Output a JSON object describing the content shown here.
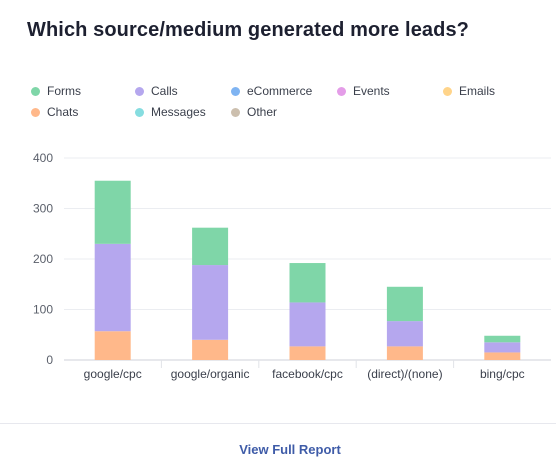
{
  "card": {
    "title": "Which source/medium generated more leads?",
    "footer_link": "View Full Report"
  },
  "legend": [
    {
      "name": "Forms",
      "color": "#7fd6a8"
    },
    {
      "name": "Calls",
      "color": "#b5a7ee"
    },
    {
      "name": "eCommerce",
      "color": "#7fb4f2"
    },
    {
      "name": "Events",
      "color": "#e49de8"
    },
    {
      "name": "Emails",
      "color": "#ffd48a"
    },
    {
      "name": "Chats",
      "color": "#ffb88a"
    },
    {
      "name": "Messages",
      "color": "#86dde0"
    },
    {
      "name": "Other",
      "color": "#ccbfae"
    }
  ],
  "chart_data": {
    "type": "bar",
    "stacked": true,
    "title": "",
    "xlabel": "",
    "ylabel": "",
    "categories": [
      "google/cpc",
      "google/organic",
      "facebook/cpc",
      "(direct)/(none)",
      "bing/cpc"
    ],
    "ylim": [
      0,
      400
    ],
    "yticks": [
      0,
      100,
      200,
      300,
      400
    ],
    "grid": true,
    "legend_position": "top",
    "series": [
      {
        "name": "Chats",
        "color": "#ffb88a",
        "values": [
          57,
          40,
          27,
          27,
          15
        ]
      },
      {
        "name": "Calls",
        "color": "#b5a7ee",
        "values": [
          173,
          148,
          87,
          50,
          20
        ]
      },
      {
        "name": "Forms",
        "color": "#7fd6a8",
        "values": [
          125,
          74,
          78,
          68,
          13
        ]
      }
    ]
  }
}
